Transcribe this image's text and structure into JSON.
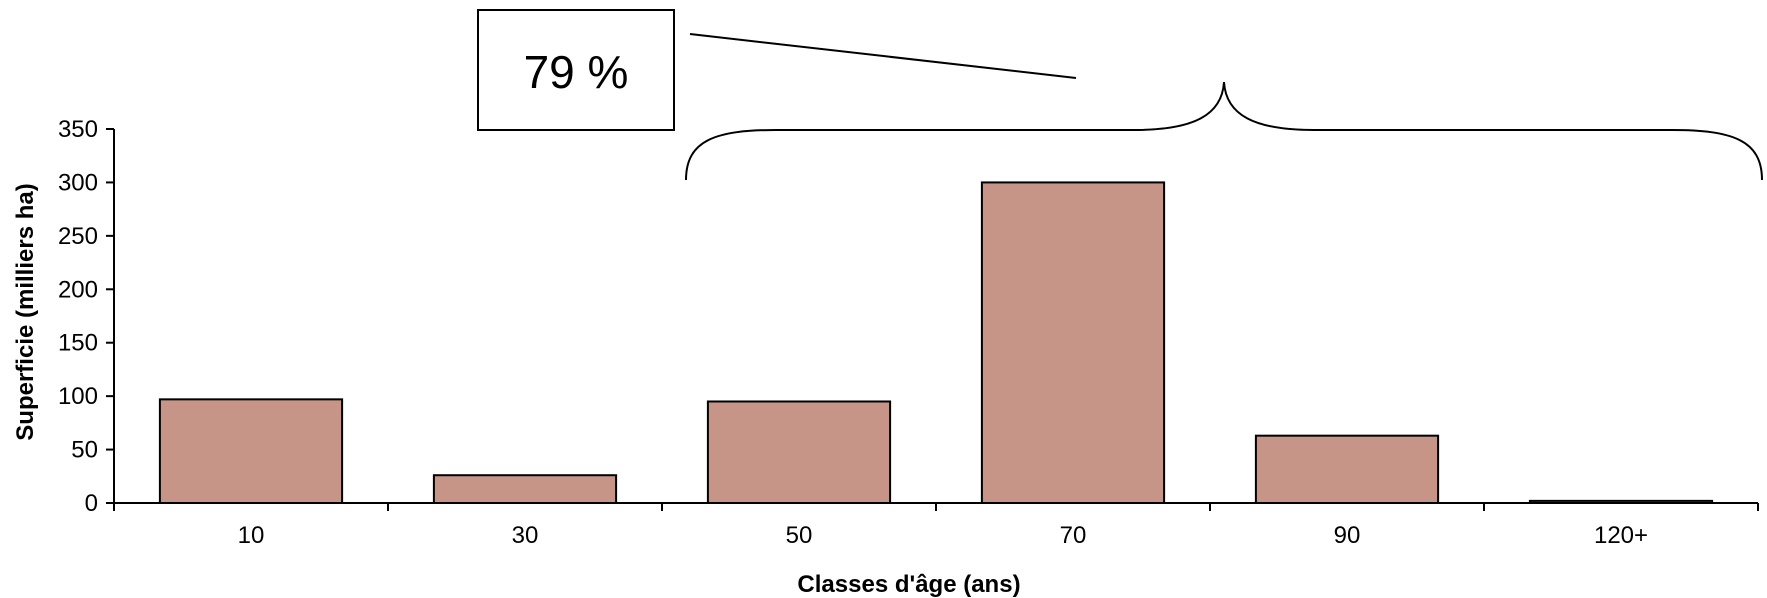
{
  "chart_data": {
    "type": "bar",
    "categories": [
      "10",
      "30",
      "50",
      "70",
      "90",
      "120+"
    ],
    "values": [
      97,
      26,
      95,
      300,
      63,
      2
    ],
    "xlabel": "Classes d'âge (ans)",
    "ylabel": "Superficie (milliers ha)",
    "ylim": [
      0,
      350
    ],
    "yticks": [
      "0",
      "50",
      "100",
      "150",
      "200",
      "250",
      "300",
      "350"
    ],
    "grid": false,
    "legend": "none",
    "bar_color": "#c69587",
    "bar_edge_color": "#000000",
    "annotation": {
      "text": "79 %",
      "spans_categories": [
        "50",
        "70",
        "90",
        "120+"
      ]
    }
  }
}
